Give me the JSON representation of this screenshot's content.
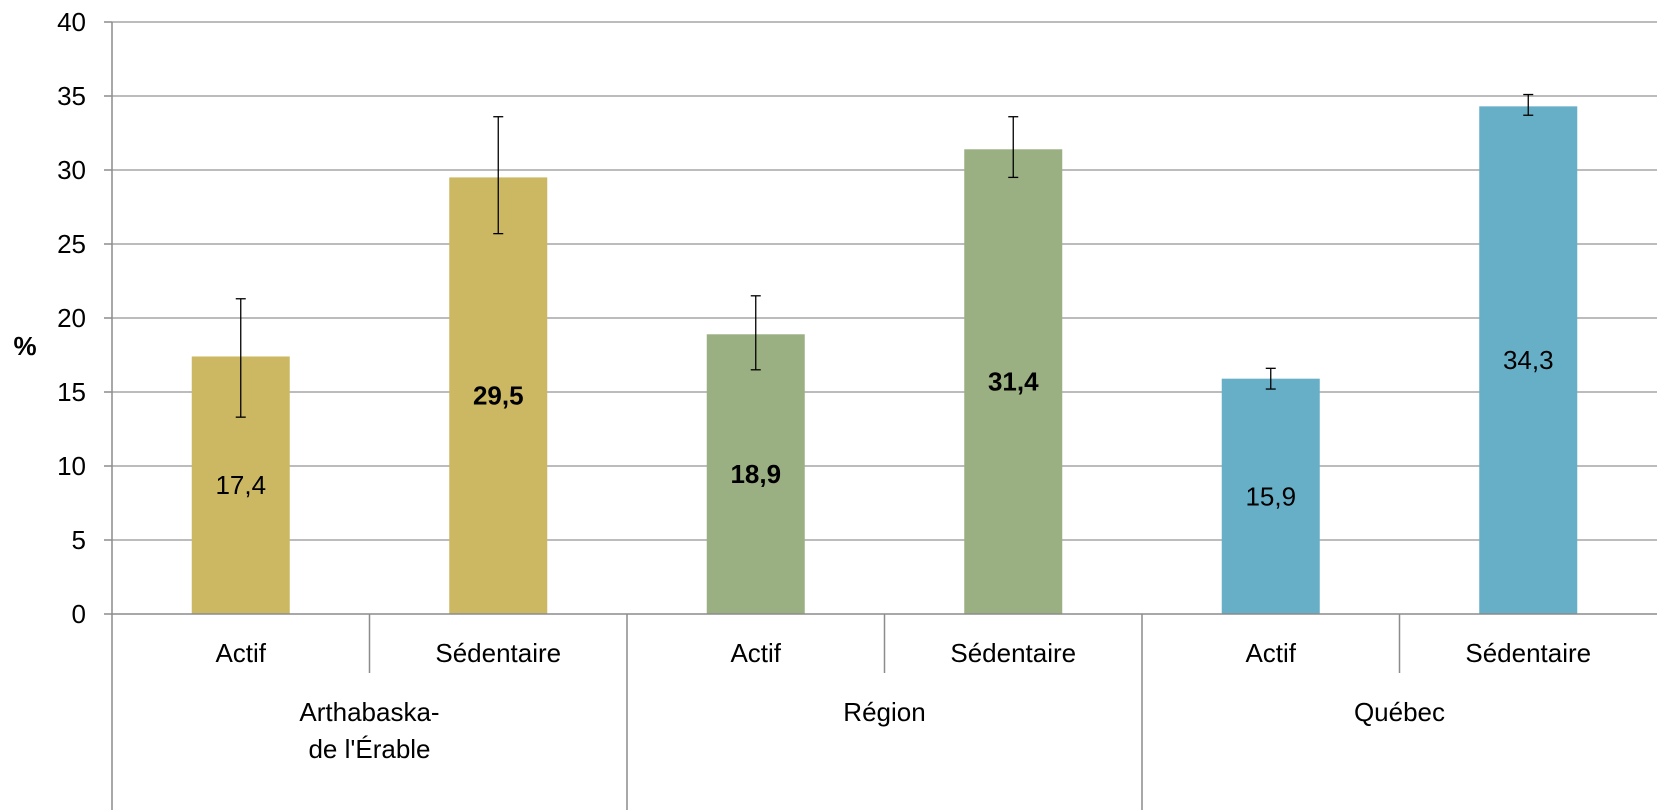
{
  "chart_data": {
    "type": "bar",
    "title": "",
    "xlabel": "",
    "ylabel": "%",
    "ylim": [
      0,
      40
    ],
    "yticks": [
      "0",
      "5",
      "10",
      "15",
      "20",
      "25",
      "30",
      "35",
      "40"
    ],
    "grid": true,
    "legend": "none",
    "groups": [
      {
        "label_lines": [
          "Arthabaska-",
          "de l'Érable"
        ],
        "color": "#CCB862",
        "bars": [
          {
            "category": "Actif",
            "value": 17.4,
            "label": "17,4",
            "bold": false,
            "err_low": 13.3,
            "err_high": 21.3
          },
          {
            "category": "Sédentaire",
            "value": 29.5,
            "label": "29,5",
            "bold": true,
            "err_low": 25.7,
            "err_high": 33.6
          }
        ]
      },
      {
        "label_lines": [
          "Région"
        ],
        "color": "#9BB082",
        "bars": [
          {
            "category": "Actif",
            "value": 18.9,
            "label": "18,9",
            "bold": true,
            "err_low": 16.5,
            "err_high": 21.5
          },
          {
            "category": "Sédentaire",
            "value": 31.4,
            "label": "31,4",
            "bold": true,
            "err_low": 29.5,
            "err_high": 33.6
          }
        ]
      },
      {
        "label_lines": [
          "Québec"
        ],
        "color": "#67AEC7",
        "bars": [
          {
            "category": "Actif",
            "value": 15.9,
            "label": "15,9",
            "bold": false,
            "err_low": 15.2,
            "err_high": 16.6
          },
          {
            "category": "Sédentaire",
            "value": 34.3,
            "label": "34,3",
            "bold": false,
            "err_low": 33.7,
            "err_high": 35.1
          }
        ]
      }
    ]
  },
  "colors": {
    "grid": "#A6A6A6",
    "axis": "#8C8C8C",
    "error_bar": "#000000"
  }
}
